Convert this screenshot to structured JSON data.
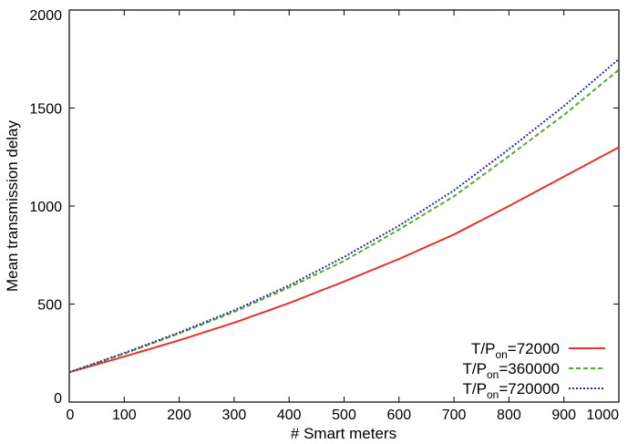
{
  "chart_data": {
    "type": "line",
    "title": "",
    "xlabel": "# Smart meters",
    "ylabel": "Mean transmission delay",
    "xlim": [
      0,
      1000
    ],
    "ylim": [
      0,
      2000
    ],
    "xticks": [
      0,
      100,
      200,
      300,
      400,
      500,
      600,
      700,
      800,
      900,
      1000
    ],
    "yticks": [
      0,
      500,
      1000,
      1500,
      2000
    ],
    "grid": false,
    "legend_position": "bottom-right",
    "x": [
      0,
      100,
      200,
      300,
      400,
      500,
      600,
      700,
      800,
      900,
      1000
    ],
    "series": [
      {
        "name_main": "T/P",
        "name_sub": "on",
        "name_value": "=72000",
        "color": "#e8312a",
        "style": "solid",
        "values": [
          152,
          232,
          315,
          405,
          505,
          615,
          730,
          855,
          1000,
          1150,
          1300
        ]
      },
      {
        "name_main": "T/P",
        "name_sub": "on",
        "name_value": "=360000",
        "color": "#5aa832",
        "style": "dashed",
        "values": [
          152,
          247,
          350,
          460,
          585,
          720,
          880,
          1050,
          1255,
          1465,
          1695
        ]
      },
      {
        "name_main": "T/P",
        "name_sub": "on",
        "name_value": "=720000",
        "color": "#2b2e9a",
        "style": "dotted",
        "values": [
          152,
          250,
          355,
          468,
          595,
          740,
          900,
          1080,
          1290,
          1510,
          1750
        ]
      }
    ]
  }
}
